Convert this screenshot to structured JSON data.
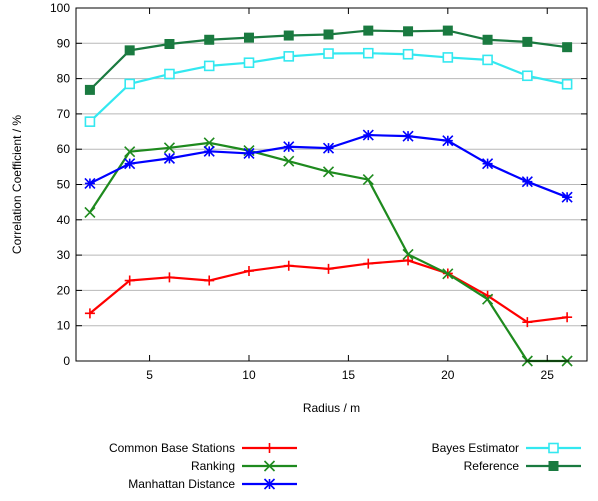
{
  "chart_data": {
    "type": "line",
    "title": "",
    "xlabel": "Radius / m",
    "ylabel": "Correlation Coefficient / %",
    "xlim": [
      1.3,
      27.0
    ],
    "ylim": [
      0,
      100
    ],
    "xticks": [
      5,
      10,
      15,
      20,
      25
    ],
    "yticks": [
      0,
      10,
      20,
      30,
      40,
      50,
      60,
      70,
      80,
      90,
      100
    ],
    "grid": "horizontal",
    "legend_position": "bottom",
    "x": [
      2,
      4,
      6,
      8,
      10,
      12,
      14,
      16,
      18,
      20,
      22,
      24,
      26
    ],
    "series": [
      {
        "name": "Common Base Stations",
        "color": "#ff0000",
        "marker": "plus",
        "values": [
          13.5,
          22.8,
          23.7,
          22.8,
          25.5,
          27.0,
          26.1,
          27.6,
          28.5,
          24.8,
          18.5,
          11.0,
          12.4
        ]
      },
      {
        "name": "Ranking",
        "color": "#1e8a1e",
        "marker": "cross",
        "values": [
          42.1,
          59.3,
          60.4,
          61.8,
          59.6,
          56.6,
          53.6,
          51.4,
          30.2,
          24.7,
          17.5,
          0.0,
          0.0
        ]
      },
      {
        "name": "Manhattan Distance",
        "color": "#0000ff",
        "marker": "star",
        "values": [
          50.3,
          55.9,
          57.4,
          59.4,
          58.8,
          60.7,
          60.3,
          64.0,
          63.7,
          62.4,
          55.9,
          50.8,
          46.4
        ]
      },
      {
        "name": "Bayes Estimator",
        "color": "#33e8f0",
        "marker": "open-square",
        "values": [
          67.8,
          78.5,
          81.3,
          83.6,
          84.5,
          86.3,
          87.1,
          87.2,
          86.9,
          86.0,
          85.3,
          80.8,
          78.4
        ]
      },
      {
        "name": "Reference",
        "color": "#1a7a40",
        "marker": "filled-square",
        "values": [
          76.8,
          88.0,
          89.8,
          91.0,
          91.6,
          92.2,
          92.5,
          93.6,
          93.4,
          93.6,
          91.0,
          90.4,
          88.9
        ]
      }
    ]
  }
}
